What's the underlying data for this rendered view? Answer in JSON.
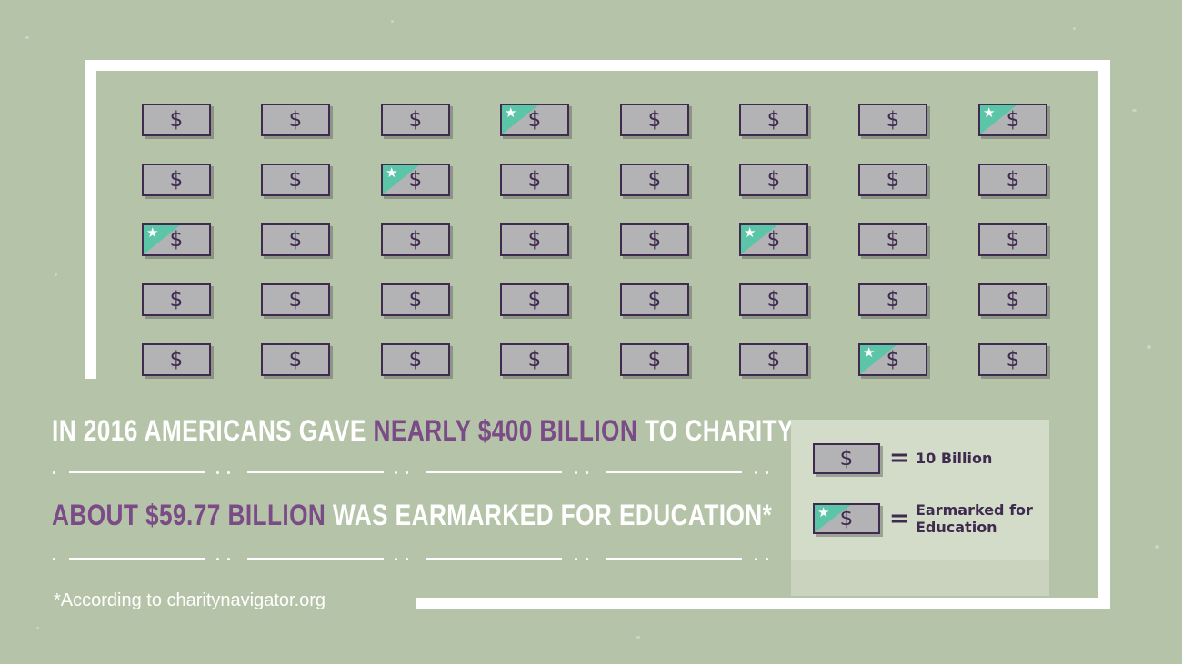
{
  "grid": {
    "rows": 5,
    "cols": 8,
    "bill_symbol": "$",
    "star_symbol": "★",
    "earmarked": [
      [
        0,
        3
      ],
      [
        0,
        7
      ],
      [
        1,
        2
      ],
      [
        2,
        0
      ],
      [
        2,
        5
      ],
      [
        4,
        6
      ]
    ],
    "colors": {
      "bill_fill": "#b3b2b4",
      "bill_border": "#3f2b4f",
      "earmark_teal": "#5cc5a8"
    }
  },
  "headline": {
    "line1_prefix": "IN 2016 AMERICANS GAVE ",
    "line1_highlight": "NEARLY $400 BILLION",
    "line1_suffix": " TO CHARITY",
    "line2_highlight": "ABOUT $59.77 BILLION",
    "line2_suffix": " WAS EARMARKED FOR EDUCATION*",
    "highlight_color": "#7a4b87"
  },
  "legend": {
    "bill_symbol": "$",
    "star_symbol": "★",
    "equals": "=",
    "bill_label": "10 Billion",
    "earmark_label_1": "Earmarked for",
    "earmark_label_2": "Education"
  },
  "footnote": "*According to charitynavigator.org",
  "background_color": "#b5c4a8"
}
